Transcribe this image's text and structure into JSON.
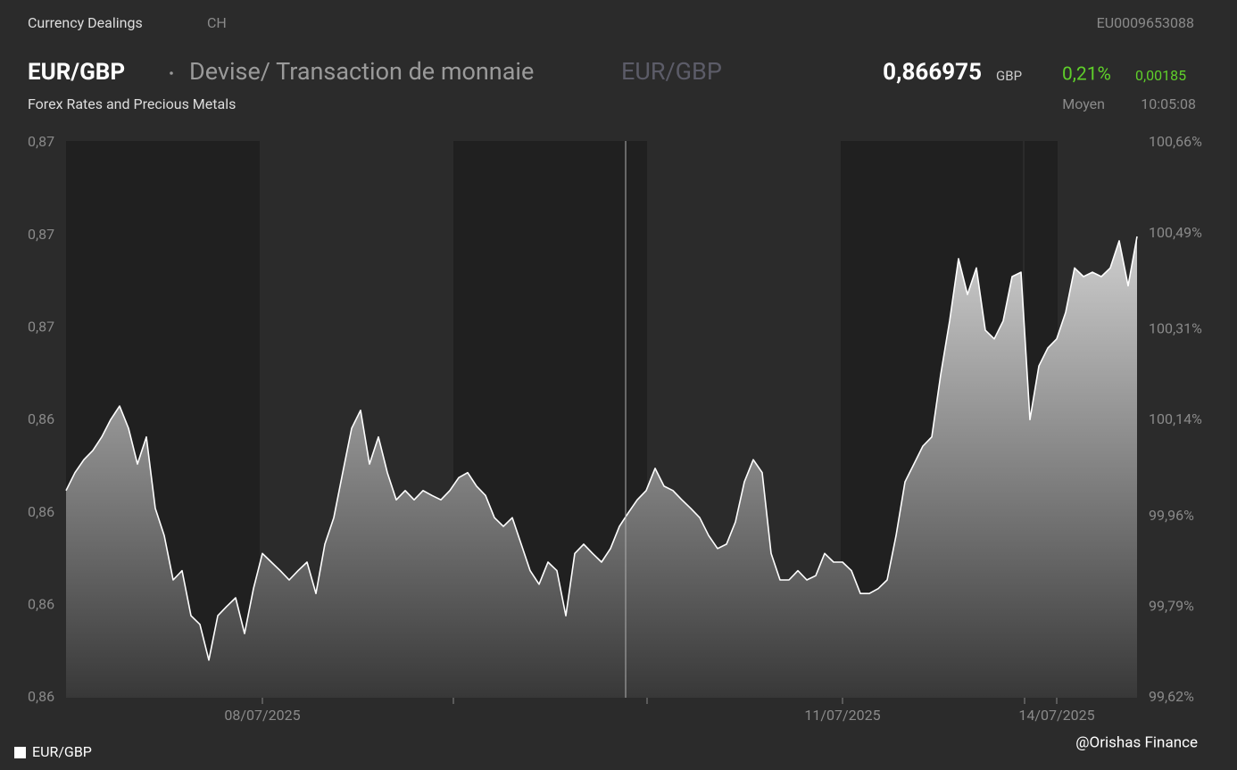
{
  "header": {
    "section": "Currency Dealings",
    "country": "CH",
    "isin": "EU0009653088",
    "symbol": "EUR/GBP",
    "name": "Devise/ Transaction de monnaie",
    "symbol_alt": "EUR/GBP",
    "price": "0,866975",
    "currency": "GBP",
    "change_pct": "0,21%",
    "change_abs": "0,00185",
    "market": "Forex Rates and Precious Metals",
    "price_type": "Moyen",
    "time": "10:05:08",
    "watermark": "@Orishas Finance"
  },
  "chart_data": {
    "type": "area",
    "categories": [
      null,
      null,
      null,
      null,
      null,
      null,
      null,
      null,
      null,
      null,
      null,
      null,
      null,
      null,
      null,
      null,
      null,
      null,
      null,
      null,
      null,
      null,
      "08/07/2025",
      null,
      null,
      null,
      null,
      null,
      null,
      null,
      null,
      null,
      null,
      null,
      null,
      null,
      null,
      null,
      null,
      null,
      null,
      null,
      null,
      null,
      null,
      null,
      null,
      null,
      null,
      null,
      null,
      null,
      null,
      null,
      null,
      null,
      null,
      null,
      null,
      null,
      null,
      null,
      null,
      null,
      null,
      null,
      null,
      null,
      null,
      null,
      null,
      null,
      null,
      null,
      null,
      null,
      null,
      null,
      null,
      null,
      null,
      null,
      null,
      null,
      null,
      null,
      null,
      "11/07/2025",
      null,
      null,
      null,
      null,
      null,
      null,
      null,
      null,
      null,
      null,
      null,
      null,
      null,
      null,
      null,
      null,
      null,
      null,
      null,
      null,
      null,
      null,
      null,
      "14/07/2025",
      null,
      null,
      null,
      null,
      null,
      null,
      null,
      null,
      null
    ],
    "series": [
      {
        "name": "EUR/GBP",
        "color": "#ffffff",
        "values": [
          0.86306,
          0.86335,
          0.86356,
          0.86371,
          0.86393,
          0.86421,
          0.86443,
          0.86407,
          0.86349,
          0.86393,
          0.86277,
          0.86233,
          0.86161,
          0.86176,
          0.86103,
          0.86089,
          0.86031,
          0.86103,
          0.86118,
          0.86132,
          0.86074,
          0.86147,
          0.86204,
          0.8619,
          0.86176,
          0.86161,
          0.86176,
          0.8619,
          0.86139,
          0.86219,
          0.86262,
          0.86335,
          0.86407,
          0.86436,
          0.86349,
          0.86393,
          0.86335,
          0.86291,
          0.86306,
          0.86291,
          0.86306,
          0.86298,
          0.86291,
          0.86306,
          0.86327,
          0.86335,
          0.86313,
          0.86298,
          0.86262,
          0.86248,
          0.86262,
          0.86219,
          0.86176,
          0.86154,
          0.8619,
          0.86176,
          0.86103,
          0.86204,
          0.86219,
          0.86204,
          0.8619,
          0.86212,
          0.86248,
          0.8627,
          0.86291,
          0.86306,
          0.86342,
          0.86313,
          0.86306,
          0.86291,
          0.86277,
          0.86262,
          0.86233,
          0.86212,
          0.86219,
          0.86255,
          0.8632,
          0.86356,
          0.86335,
          0.86204,
          0.86161,
          0.86161,
          0.86176,
          0.86161,
          0.86168,
          0.86204,
          0.8619,
          0.8619,
          0.86176,
          0.86139,
          0.86139,
          0.86147,
          0.86161,
          0.86233,
          0.8632,
          0.86349,
          0.86378,
          0.86393,
          0.86494,
          0.86581,
          0.86682,
          0.86624,
          0.86667,
          0.86566,
          0.86552,
          0.86581,
          0.86653,
          0.8666,
          0.86421,
          0.86508,
          0.86537,
          0.86552,
          0.86595,
          0.86667,
          0.86653,
          0.8666,
          0.86653,
          0.86667,
          0.86711,
          0.86638,
          0.86718
        ]
      }
    ],
    "ylim": [
      0.8597,
      0.8687
    ],
    "yticks": [
      {
        "value": 0.8597,
        "label": "0,86"
      },
      {
        "value": 0.8612,
        "label": "0,86"
      },
      {
        "value": 0.8627,
        "label": "0,86"
      },
      {
        "value": 0.8642,
        "label": "0,86"
      },
      {
        "value": 0.8657,
        "label": "0,87"
      },
      {
        "value": 0.8672,
        "label": "0,87"
      },
      {
        "value": 0.8687,
        "label": "0,87"
      }
    ],
    "y2lim": [
      99.62,
      100.66
    ],
    "y2ticks": [
      {
        "value": 99.62,
        "label": "99,62%"
      },
      {
        "value": 99.79,
        "label": "99,79%"
      },
      {
        "value": 99.96,
        "label": "99,96%"
      },
      {
        "value": 100.14,
        "label": "100,14%"
      },
      {
        "value": 100.31,
        "label": "100,31%"
      },
      {
        "value": 100.49,
        "label": "100,49%"
      },
      {
        "value": 100.66,
        "label": "100,66%"
      }
    ],
    "grid": false
  }
}
